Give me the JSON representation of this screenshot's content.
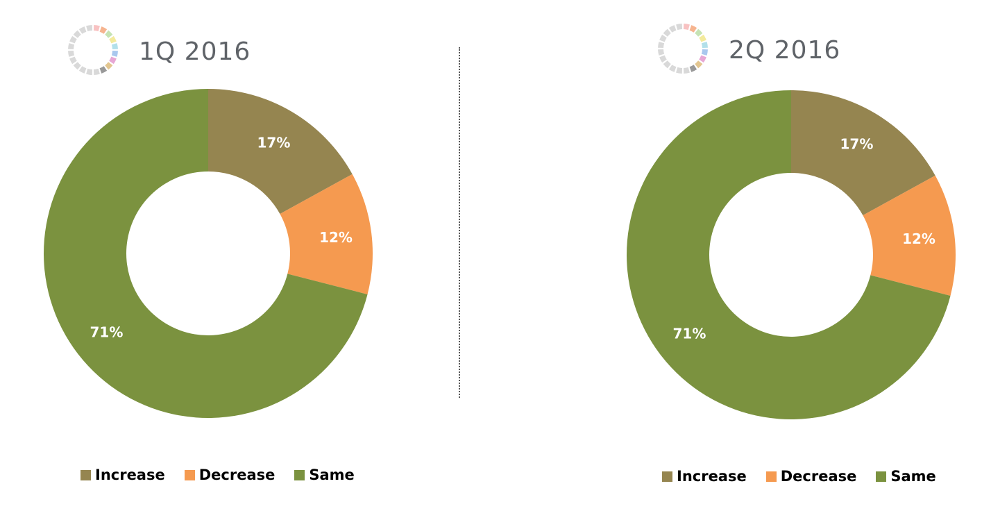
{
  "chart_data": [
    {
      "type": "pie",
      "title": "1Q 2016",
      "categories": [
        "Increase",
        "Decrease",
        "Same"
      ],
      "values": [
        17,
        12,
        71
      ],
      "labels": [
        "17%",
        "12%",
        "71%"
      ],
      "colors": [
        "#958550",
        "#f59a50",
        "#7b923f"
      ],
      "donut": true,
      "legend_placement": "bottom"
    },
    {
      "type": "pie",
      "title": "2Q 2016",
      "categories": [
        "Increase",
        "Decrease",
        "Same"
      ],
      "values": [
        17,
        12,
        71
      ],
      "labels": [
        "17%",
        "12%",
        "71%"
      ],
      "colors": [
        "#958550",
        "#f59a50",
        "#7b923f"
      ],
      "donut": true,
      "legend_placement": "bottom"
    }
  ],
  "logo": {
    "icon": "segmented-ring-logo-icon",
    "colors": [
      "#f8c2c2",
      "#f6b48f",
      "#c6e3b4",
      "#f3ea9c",
      "#b2e0ea",
      "#a9c8ee",
      "#e7a7d4",
      "#e3c690",
      "#999999",
      "#d9d9d9"
    ]
  }
}
